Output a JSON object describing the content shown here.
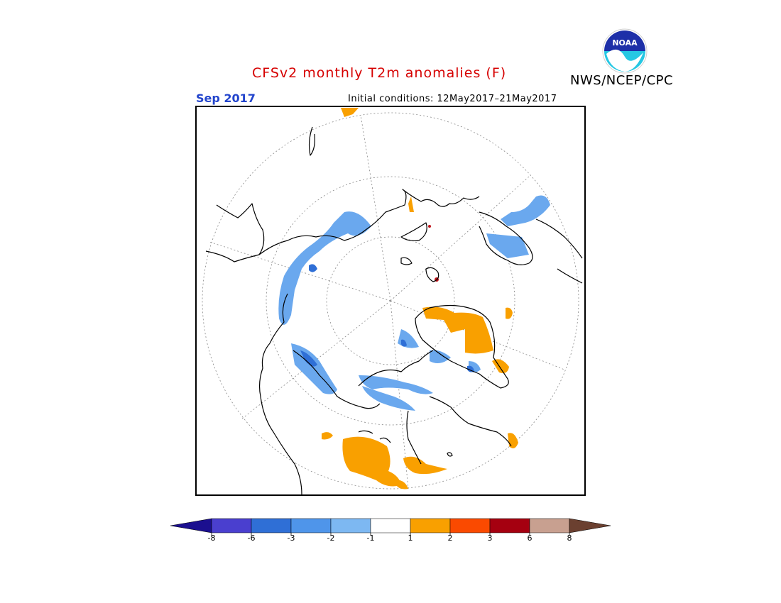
{
  "header": {
    "title": "CFSv2 monthly T2m anomalies (F)",
    "org": "NWS/NCEP/CPC",
    "month": "Sep 2017",
    "init_conditions": "Initial conditions: 12May2017–21May2017",
    "logo_text": "NOAA"
  },
  "legend": {
    "tick_labels": [
      "-8",
      "-6",
      "-3",
      "-2",
      "-1",
      "1",
      "2",
      "3",
      "6",
      "8"
    ],
    "colors": [
      "#1b0f8f",
      "#4a3fcf",
      "#2f6fd6",
      "#4f95ea",
      "#7db8f2",
      "#ffffff",
      "#f9a000",
      "#fa4a00",
      "#a50010",
      "#c8a090",
      "#6b4030"
    ]
  },
  "map": {
    "projection": "north-polar-stereographic",
    "cold_color": "#6aa8ee",
    "cold_dark_color": "#2f6fd6",
    "warm_color": "#f9a000",
    "warm_dark_color": "#c0141a"
  }
}
